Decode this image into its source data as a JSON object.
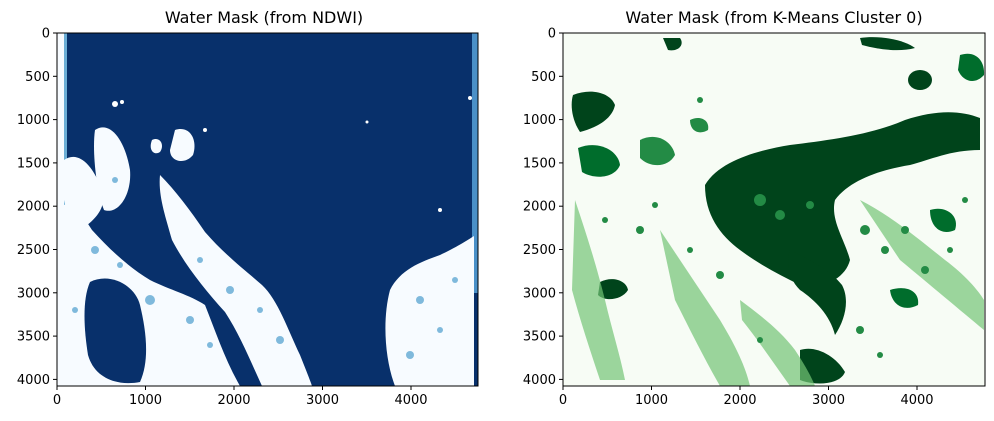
{
  "figure": {
    "panels": [
      {
        "title": "Water Mask (from NDWI)",
        "colormap": "Blues",
        "colors": {
          "low": "#f7fbff",
          "mid": "#6baed6",
          "high": "#08306b"
        },
        "x_ticks": [
          "0",
          "1000",
          "2000",
          "3000",
          "4000"
        ],
        "y_ticks": [
          "0",
          "500",
          "1000",
          "1500",
          "2000",
          "2500",
          "3000",
          "3500",
          "4000"
        ]
      },
      {
        "title": "Water Mask (from K-Means Cluster 0)",
        "colormap": "Greens",
        "colors": {
          "low": "#f7fcf5",
          "mid": "#74c476",
          "high": "#00441b"
        },
        "x_ticks": [
          "0",
          "1000",
          "2000",
          "3000",
          "4000"
        ],
        "y_ticks": [
          "0",
          "500",
          "1000",
          "1500",
          "2000",
          "2500",
          "3000",
          "3500",
          "4000"
        ]
      }
    ]
  }
}
